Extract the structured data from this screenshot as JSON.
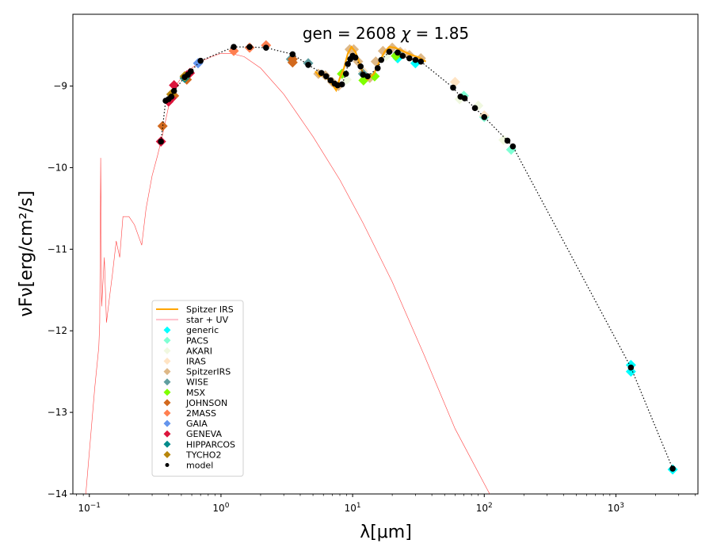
{
  "chart_data": {
    "type": "scatter",
    "title": "gen = 2608 χ = 1.85",
    "title_parts": {
      "gen_label": "gen",
      "gen_value": "2608",
      "chi_label": "χ",
      "chi_value": "1.85"
    },
    "xlabel": "λ[μm]",
    "ylabel": "νFν[erg/cm²/s]",
    "xscale": "log",
    "xlim": [
      0.075,
      4200
    ],
    "ylim": [
      -14,
      -8.12
    ],
    "xticks": [
      {
        "value": 0.1,
        "base": "10",
        "exp": "−1"
      },
      {
        "value": 1,
        "base": "10",
        "exp": "0"
      },
      {
        "value": 10,
        "base": "10",
        "exp": "1"
      },
      {
        "value": 100,
        "base": "10",
        "exp": "2"
      },
      {
        "value": 1000,
        "base": "10",
        "exp": "3"
      }
    ],
    "yticks": [
      {
        "value": -9,
        "label": "−9"
      },
      {
        "value": -10,
        "label": "−10"
      },
      {
        "value": -11,
        "label": "−11"
      },
      {
        "value": -12,
        "label": "−12"
      },
      {
        "value": -13,
        "label": "−13"
      },
      {
        "value": -14,
        "label": "−14"
      }
    ],
    "grid": false,
    "legend": {
      "placement": "lower-left",
      "entries": [
        {
          "label": "Spitzer IRS",
          "kind": "line",
          "color": "#FFA500"
        },
        {
          "label": "star + UV",
          "kind": "line",
          "color": "#FFC0CB"
        },
        {
          "label": "generic",
          "kind": "diamond",
          "color": "#00FFFF"
        },
        {
          "label": "PACS",
          "kind": "diamond",
          "color": "#7FFFD4"
        },
        {
          "label": "AKARI",
          "kind": "diamond",
          "color": "#F0F8E0"
        },
        {
          "label": "IRAS",
          "kind": "diamond",
          "color": "#FFE4C4"
        },
        {
          "label": "SpitzerIRS",
          "kind": "diamond",
          "color": "#DEB887"
        },
        {
          "label": "WISE",
          "kind": "diamond",
          "color": "#5F9EA0"
        },
        {
          "label": "MSX",
          "kind": "diamond",
          "color": "#7FFF00"
        },
        {
          "label": "JOHNSON",
          "kind": "diamond",
          "color": "#D2691E"
        },
        {
          "label": "2MASS",
          "kind": "diamond",
          "color": "#FF7F50"
        },
        {
          "label": "GAIA",
          "kind": "diamond",
          "color": "#6495ED"
        },
        {
          "label": "GENEVA",
          "kind": "diamond",
          "color": "#DC143C"
        },
        {
          "label": "HIPPARCOS",
          "kind": "diamond",
          "color": "#008B8B"
        },
        {
          "label": "TYCHO2",
          "kind": "diamond",
          "color": "#B8860B"
        },
        {
          "label": "model",
          "kind": "dot",
          "color": "#000000"
        }
      ]
    },
    "series": [
      {
        "name": "star + UV",
        "type": "line",
        "color": "#FF0000",
        "points": [
          [
            0.094,
            -14.0
          ],
          [
            0.11,
            -12.7
          ],
          [
            0.118,
            -12.2
          ],
          [
            0.12,
            -11.9
          ],
          [
            0.122,
            -9.88
          ],
          [
            0.124,
            -11.7
          ],
          [
            0.13,
            -11.1
          ],
          [
            0.135,
            -11.9
          ],
          [
            0.142,
            -11.6
          ],
          [
            0.15,
            -11.3
          ],
          [
            0.16,
            -10.9
          ],
          [
            0.17,
            -11.1
          ],
          [
            0.18,
            -10.6
          ],
          [
            0.2,
            -10.6
          ],
          [
            0.22,
            -10.7
          ],
          [
            0.25,
            -10.95
          ],
          [
            0.27,
            -10.5
          ],
          [
            0.3,
            -10.1
          ],
          [
            0.33,
            -9.85
          ],
          [
            0.36,
            -9.6
          ],
          [
            0.4,
            -9.25
          ],
          [
            0.45,
            -9.0
          ],
          [
            0.5,
            -8.9
          ],
          [
            0.6,
            -8.78
          ],
          [
            0.7,
            -8.7
          ],
          [
            0.85,
            -8.64
          ],
          [
            1.0,
            -8.6
          ],
          [
            1.2,
            -8.6
          ],
          [
            1.5,
            -8.64
          ],
          [
            2.0,
            -8.78
          ],
          [
            3.0,
            -9.1
          ],
          [
            5.0,
            -9.62
          ],
          [
            8.0,
            -10.15
          ],
          [
            12.0,
            -10.68
          ],
          [
            20.0,
            -11.4
          ],
          [
            35.0,
            -12.3
          ],
          [
            60.0,
            -13.2
          ],
          [
            110.0,
            -14.0
          ]
        ]
      },
      {
        "name": "Spitzer IRS",
        "type": "line",
        "color": "#FFA500",
        "points": [
          [
            5.2,
            -8.82
          ],
          [
            5.6,
            -8.88
          ],
          [
            6.0,
            -8.86
          ],
          [
            6.5,
            -8.92
          ],
          [
            7.0,
            -8.98
          ],
          [
            7.5,
            -9.05
          ],
          [
            8.0,
            -8.9
          ],
          [
            8.6,
            -8.78
          ],
          [
            9.2,
            -8.6
          ],
          [
            9.8,
            -8.52
          ],
          [
            10.5,
            -8.58
          ],
          [
            11.3,
            -8.72
          ],
          [
            12.0,
            -8.85
          ],
          [
            13.0,
            -8.92
          ],
          [
            14.5,
            -8.85
          ],
          [
            16.0,
            -8.7
          ],
          [
            17.5,
            -8.58
          ],
          [
            19.0,
            -8.52
          ],
          [
            21.0,
            -8.53
          ],
          [
            24.0,
            -8.57
          ],
          [
            28.0,
            -8.62
          ],
          [
            32.0,
            -8.65
          ],
          [
            36.0,
            -8.7
          ]
        ]
      },
      {
        "name": "model",
        "type": "line+dots",
        "color": "#000000",
        "points": [
          [
            0.35,
            -9.68
          ],
          [
            0.38,
            -9.18
          ],
          [
            0.4,
            -9.16
          ],
          [
            0.42,
            -9.13
          ],
          [
            0.44,
            -9.06
          ],
          [
            0.53,
            -8.89
          ],
          [
            0.56,
            -8.86
          ],
          [
            0.59,
            -8.82
          ],
          [
            0.7,
            -8.69
          ],
          [
            1.25,
            -8.52
          ],
          [
            1.65,
            -8.52
          ],
          [
            2.2,
            -8.53
          ],
          [
            3.5,
            -8.61
          ],
          [
            4.6,
            -8.74
          ],
          [
            5.8,
            -8.84
          ],
          [
            6.3,
            -8.88
          ],
          [
            6.8,
            -8.93
          ],
          [
            7.3,
            -8.97
          ],
          [
            7.7,
            -8.99
          ],
          [
            8.3,
            -8.98
          ],
          [
            8.9,
            -8.85
          ],
          [
            9.2,
            -8.73
          ],
          [
            9.6,
            -8.67
          ],
          [
            10.0,
            -8.63
          ],
          [
            10.5,
            -8.65
          ],
          [
            11.5,
            -8.76
          ],
          [
            12.0,
            -8.86
          ],
          [
            13.0,
            -8.88
          ],
          [
            15.5,
            -8.78
          ],
          [
            16.5,
            -8.68
          ],
          [
            19.0,
            -8.58
          ],
          [
            22.0,
            -8.59
          ],
          [
            24.0,
            -8.63
          ],
          [
            27.0,
            -8.66
          ],
          [
            30.0,
            -8.68
          ],
          [
            33.0,
            -8.7
          ],
          [
            58.0,
            -9.02
          ],
          [
            66.0,
            -9.13
          ],
          [
            71.0,
            -9.15
          ],
          [
            85.0,
            -9.27
          ],
          [
            100.0,
            -9.38
          ],
          [
            150.0,
            -9.67
          ],
          [
            165.0,
            -9.74
          ],
          [
            1300.0,
            -12.45
          ],
          [
            2700.0,
            -13.69
          ]
        ]
      },
      {
        "name": "generic",
        "type": "diamond",
        "color": "#00FFFF",
        "points": [
          [
            30.0,
            -8.72
          ],
          [
            22.0,
            -8.66
          ],
          [
            1300.0,
            -12.42
          ],
          [
            1300.0,
            -12.5
          ],
          [
            2700.0,
            -13.7
          ]
        ]
      },
      {
        "name": "PACS",
        "type": "diamond",
        "color": "#7FFFD4",
        "points": [
          [
            70.0,
            -9.12
          ],
          [
            100.0,
            -9.38
          ],
          [
            160.0,
            -9.78
          ]
        ]
      },
      {
        "name": "AKARI",
        "type": "diamond",
        "color": "#F0F8E0",
        "points": [
          [
            9.0,
            -8.92
          ],
          [
            18.0,
            -8.63
          ],
          [
            65.0,
            -9.16
          ],
          [
            90.0,
            -9.24
          ],
          [
            140.0,
            -9.66
          ]
        ]
      },
      {
        "name": "IRAS",
        "type": "diamond",
        "color": "#FFE4C4",
        "points": [
          [
            12.0,
            -8.82
          ],
          [
            25.0,
            -8.6
          ],
          [
            60.0,
            -8.95
          ],
          [
            100.0,
            -9.36
          ]
        ]
      },
      {
        "name": "SpitzerIRS",
        "type": "diamond",
        "color": "#DEB887",
        "points": [
          [
            5.5,
            -8.85
          ],
          [
            6.2,
            -8.87
          ],
          [
            7.0,
            -8.95
          ],
          [
            7.8,
            -9.0
          ],
          [
            9.5,
            -8.55
          ],
          [
            10.2,
            -8.55
          ],
          [
            11.0,
            -8.7
          ],
          [
            13.5,
            -8.9
          ],
          [
            15.0,
            -8.7
          ],
          [
            17.0,
            -8.57
          ],
          [
            20.0,
            -8.53
          ],
          [
            23.0,
            -8.58
          ],
          [
            27.0,
            -8.62
          ],
          [
            33.0,
            -8.66
          ]
        ]
      },
      {
        "name": "WISE",
        "type": "diamond",
        "color": "#5F9EA0",
        "points": [
          [
            3.4,
            -8.67
          ],
          [
            4.6,
            -8.72
          ],
          [
            12.0,
            -8.85
          ],
          [
            22.0,
            -8.6
          ]
        ]
      },
      {
        "name": "MSX",
        "type": "diamond",
        "color": "#7FFF00",
        "points": [
          [
            8.3,
            -8.85
          ],
          [
            12.1,
            -8.93
          ],
          [
            14.7,
            -8.88
          ],
          [
            21.3,
            -8.63
          ]
        ]
      },
      {
        "name": "JOHNSON",
        "type": "diamond",
        "color": "#D2691E",
        "points": [
          [
            0.36,
            -9.49
          ],
          [
            0.44,
            -9.12
          ],
          [
            0.55,
            -8.92
          ],
          [
            3.5,
            -8.71
          ],
          [
            3.5,
            -8.67
          ]
        ]
      },
      {
        "name": "2MASS",
        "type": "diamond",
        "color": "#FF7F50",
        "points": [
          [
            1.25,
            -8.57
          ],
          [
            1.65,
            -8.53
          ],
          [
            2.2,
            -8.5
          ]
        ]
      },
      {
        "name": "GAIA",
        "type": "diamond",
        "color": "#6495ED",
        "points": [
          [
            0.67,
            -8.72
          ]
        ]
      },
      {
        "name": "GENEVA",
        "type": "diamond",
        "color": "#DC143C",
        "points": [
          [
            0.35,
            -9.68
          ],
          [
            0.4,
            -9.19
          ],
          [
            0.42,
            -9.15
          ],
          [
            0.44,
            -8.99
          ],
          [
            0.55,
            -8.87
          ],
          [
            0.58,
            -8.84
          ]
        ]
      },
      {
        "name": "HIPPARCOS",
        "type": "diamond",
        "color": "#008B8B",
        "points": [
          [
            0.53,
            -8.9
          ]
        ]
      },
      {
        "name": "TYCHO2",
        "type": "diamond",
        "color": "#B8860B",
        "points": [
          [
            0.42,
            -9.1
          ],
          [
            0.53,
            -8.88
          ]
        ]
      }
    ]
  }
}
